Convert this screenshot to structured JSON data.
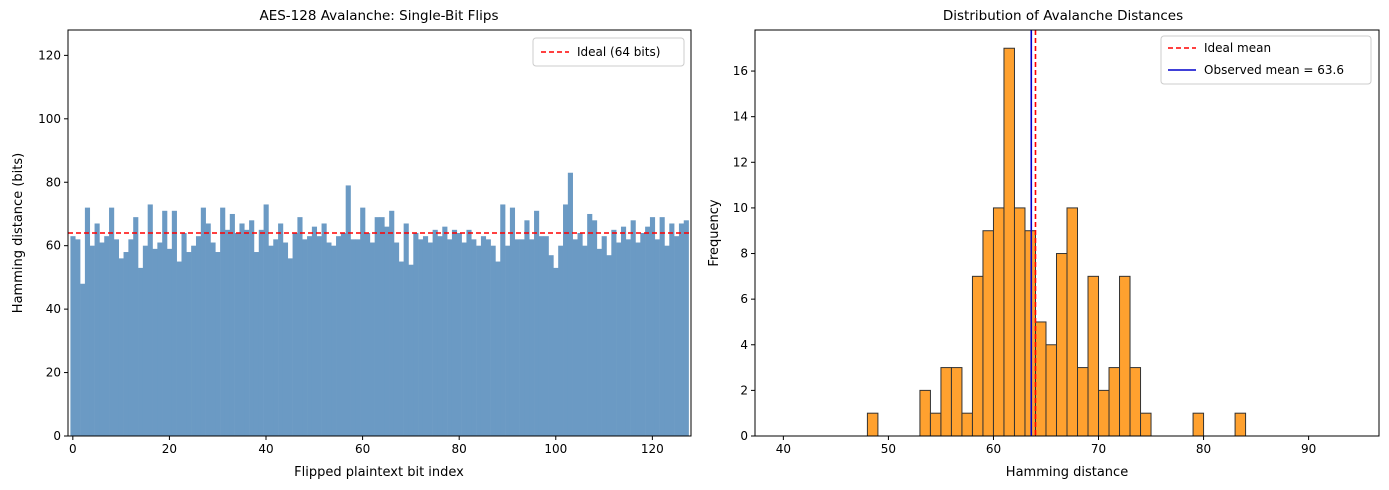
{
  "chart_data": [
    {
      "type": "bar",
      "title": "AES-128 Avalanche: Single-Bit Flips",
      "xlabel": "Flipped plaintext bit index",
      "ylabel": "Hamming distance (bits)",
      "xlim": [
        -1,
        128
      ],
      "ylim": [
        0,
        128
      ],
      "xticks": [
        0,
        20,
        40,
        60,
        80,
        100,
        120
      ],
      "yticks": [
        0,
        20,
        40,
        60,
        80,
        100,
        120
      ],
      "bar_color": "#6b9ac4",
      "values": [
        63,
        62,
        48,
        72,
        60,
        67,
        61,
        63,
        72,
        62,
        56,
        58,
        62,
        69,
        53,
        60,
        73,
        59,
        61,
        71,
        59,
        71,
        55,
        64,
        58,
        60,
        63,
        72,
        67,
        61,
        58,
        72,
        65,
        70,
        64,
        67,
        65,
        68,
        58,
        65,
        73,
        60,
        62,
        67,
        61,
        56,
        64,
        69,
        62,
        63,
        66,
        63,
        67,
        61,
        60,
        63,
        64,
        79,
        62,
        62,
        72,
        64,
        61,
        69,
        69,
        66,
        71,
        61,
        55,
        67,
        54,
        64,
        62,
        63,
        61,
        65,
        63,
        66,
        62,
        65,
        64,
        61,
        65,
        62,
        60,
        63,
        62,
        60,
        55,
        73,
        60,
        72,
        62,
        62,
        68,
        62,
        71,
        63,
        63,
        57,
        53,
        60,
        73,
        83,
        62,
        64,
        60,
        70,
        68,
        59,
        63,
        57,
        65,
        61,
        66,
        62,
        68,
        61,
        64,
        66,
        69,
        62,
        69,
        60,
        67,
        63,
        67,
        68
      ],
      "reference_line": {
        "y": 64,
        "color": "#ff0000",
        "style": "dashed",
        "label": "Ideal (64 bits)"
      },
      "legend_position": "upper-right",
      "grid": false
    },
    {
      "type": "histogram",
      "title": "Distribution of Avalanche Distances",
      "xlabel": "Hamming distance",
      "ylabel": "Frequency",
      "xlim": [
        37.3,
        96.7
      ],
      "ylim": [
        0,
        17.8
      ],
      "xticks": [
        40,
        50,
        60,
        70,
        80,
        90
      ],
      "yticks": [
        0,
        2,
        4,
        6,
        8,
        10,
        12,
        14,
        16
      ],
      "bin_start": 40,
      "bin_width": 1,
      "bin_counts": [
        0,
        0,
        0,
        0,
        0,
        0,
        0,
        0,
        1,
        0,
        0,
        0,
        0,
        2,
        1,
        3,
        3,
        1,
        7,
        9,
        10,
        17,
        10,
        9,
        5,
        4,
        8,
        10,
        3,
        7,
        2,
        3,
        7,
        3,
        1,
        0,
        0,
        0,
        0,
        1,
        0,
        0,
        0,
        1,
        0,
        0,
        0,
        0,
        0,
        0,
        0,
        0,
        0,
        0
      ],
      "bar_color": "#ffa12f",
      "edge_color": "#333333",
      "lines": [
        {
          "x": 64,
          "color": "#ff0000",
          "style": "dashed",
          "label": "Ideal mean"
        },
        {
          "x": 63.6,
          "color": "#0000cc",
          "style": "solid",
          "label": "Observed mean = 63.6"
        }
      ],
      "legend_position": "upper-right",
      "grid": false
    }
  ]
}
